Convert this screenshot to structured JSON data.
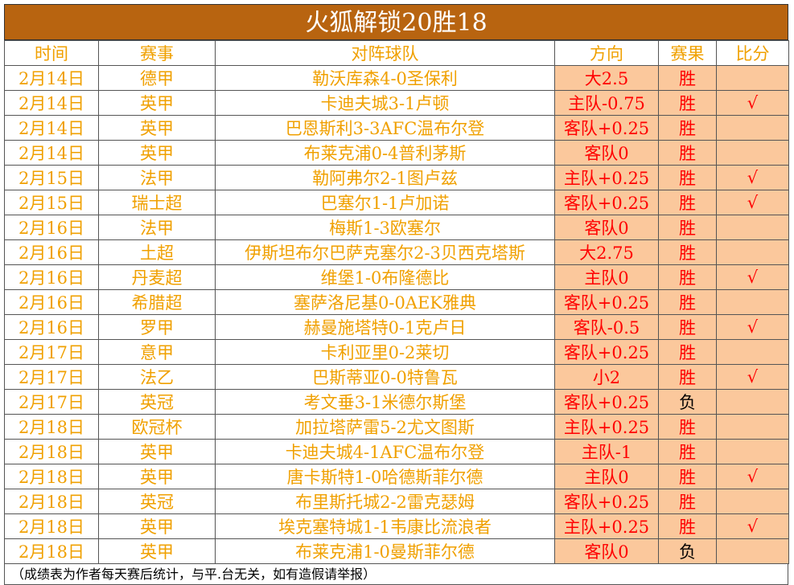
{
  "header": {
    "title": "火狐解锁20胜18"
  },
  "table": {
    "columns": [
      "时间",
      "赛事",
      "对阵球队",
      "方向",
      "赛果",
      "比分"
    ],
    "rows": [
      [
        "2月14日",
        "德甲",
        "勒沃库森4-0圣保利",
        "大2.5",
        "胜",
        null
      ],
      [
        "2月14日",
        "英甲",
        "卡迪夫城3-1卢顿",
        "主队-0.75",
        "胜",
        "√"
      ],
      [
        "2月14日",
        "英甲",
        "巴恩斯利3-3AFC温布尔登",
        "客队+0.25",
        "胜",
        null
      ],
      [
        "2月14日",
        "英甲",
        "布莱克浦0-4普利茅斯",
        "客队0",
        "胜",
        null
      ],
      [
        "2月15日",
        "法甲",
        "勒阿弗尔2-1图卢兹",
        "主队+0.25",
        "胜",
        "√"
      ],
      [
        "2月15日",
        "瑞士超",
        "巴塞尔1-1卢加诺",
        "客队+0.25",
        "胜",
        "√"
      ],
      [
        "2月16日",
        "法甲",
        "梅斯1-3欧塞尔",
        "客队0",
        "胜",
        null
      ],
      [
        "2月16日",
        "土超",
        "伊斯坦布尔巴萨克塞尔2-3贝西克塔斯",
        "大2.75",
        "胜",
        null
      ],
      [
        "2月16日",
        "丹麦超",
        "维堡1-0布隆德比",
        "主队0",
        "胜",
        "√"
      ],
      [
        "2月16日",
        "希腊超",
        "塞萨洛尼基0-0AEK雅典",
        "客队+0.25",
        "胜",
        null
      ],
      [
        "2月16日",
        "罗甲",
        "赫曼施塔特0-1克卢日",
        "客队-0.5",
        "胜",
        "√"
      ],
      [
        "2月17日",
        "意甲",
        "卡利亚里0-2莱切",
        "客队+0.25",
        "胜",
        null
      ],
      [
        "2月17日",
        "法乙",
        "巴斯蒂亚0-0特鲁瓦",
        "小2",
        "胜",
        "√"
      ],
      [
        "2月17日",
        "英冠",
        "考文垂3-1米德尔斯堡",
        "客队+0.25",
        "负",
        null
      ],
      [
        "2月18日",
        "欧冠杯",
        "加拉塔萨雷5-2尤文图斯",
        "主队+0.25",
        "胜",
        null
      ],
      [
        "2月18日",
        "英甲",
        "卡迪夫城4-1AFC温布尔登",
        "主队-1",
        "胜",
        null
      ],
      [
        "2月18日",
        "英甲",
        "唐卡斯特1-0哈德斯菲尔德",
        "主队0",
        "胜",
        "√"
      ],
      [
        "2月18日",
        "英冠",
        "布里斯托城2-2雷克瑟姆",
        "客队+0.25",
        "胜",
        null
      ],
      [
        "2月18日",
        "英甲",
        "埃克塞特城1-1韦康比流浪者",
        "主队+0.25",
        "胜",
        "√"
      ],
      [
        "2月18日",
        "英甲",
        "布莱克浦1-0曼斯菲尔德",
        "客队0",
        "负",
        null
      ]
    ],
    "result_colors": [
      "#ff0000",
      "#ff0000",
      "#ff0000",
      "#ff0000",
      "#ff0000",
      "#ff0000",
      "#ff0000",
      "#ff0000",
      "#ff0000",
      "#ff0000",
      "#ff0000",
      "#ff0000",
      "#ff0000",
      "#000000",
      "#ff0000",
      "#ff0000",
      "#ff0000",
      "#ff0000",
      "#ff0000",
      "#000000"
    ]
  },
  "footer": {
    "note": "（成绩表为作者每天赛后统计，与平.台无关，如有造假请举报）"
  }
}
